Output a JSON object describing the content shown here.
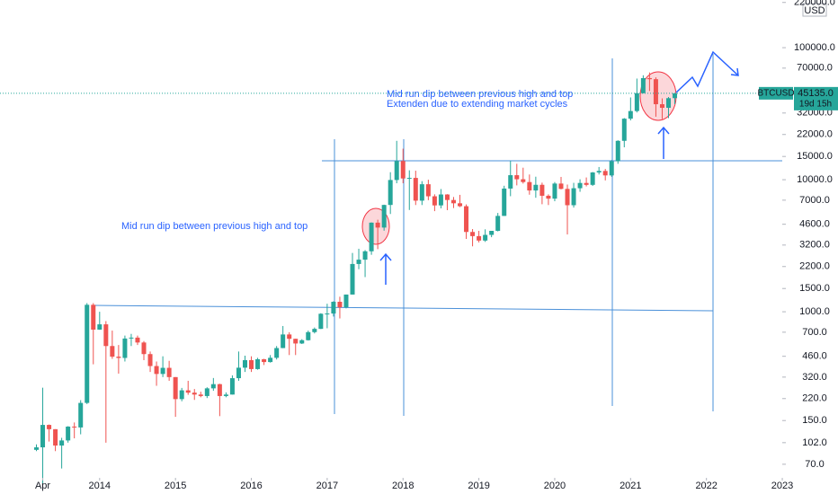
{
  "chart_data": {
    "type": "candlestick",
    "symbol": "BTCUSD",
    "currency": "USD",
    "log_scale": true,
    "up_color": "#26a69a",
    "down_color": "#ef5350",
    "x": [
      "2013-03",
      "2013-04",
      "2013-05",
      "2013-06",
      "2013-07",
      "2013-08",
      "2013-09",
      "2013-10",
      "2013-11",
      "2013-12",
      "2014-01",
      "2014-02",
      "2014-03",
      "2014-04",
      "2014-05",
      "2014-06",
      "2014-07",
      "2014-08",
      "2014-09",
      "2014-10",
      "2014-11",
      "2014-12",
      "2015-01",
      "2015-02",
      "2015-03",
      "2015-04",
      "2015-05",
      "2015-06",
      "2015-07",
      "2015-08",
      "2015-09",
      "2015-10",
      "2015-11",
      "2015-12",
      "2016-01",
      "2016-02",
      "2016-03",
      "2016-04",
      "2016-05",
      "2016-06",
      "2016-07",
      "2016-08",
      "2016-09",
      "2016-10",
      "2016-11",
      "2016-12",
      "2017-01",
      "2017-02",
      "2017-03",
      "2017-04",
      "2017-05",
      "2017-06",
      "2017-07",
      "2017-08",
      "2017-09",
      "2017-10",
      "2017-11",
      "2017-12",
      "2018-01",
      "2018-02",
      "2018-03",
      "2018-04",
      "2018-05",
      "2018-06",
      "2018-07",
      "2018-08",
      "2018-09",
      "2018-10",
      "2018-11",
      "2018-12",
      "2019-01",
      "2019-02",
      "2019-03",
      "2019-04",
      "2019-05",
      "2019-06",
      "2019-07",
      "2019-08",
      "2019-09",
      "2019-10",
      "2019-11",
      "2019-12",
      "2020-01",
      "2020-02",
      "2020-03",
      "2020-04",
      "2020-05",
      "2020-06",
      "2020-07",
      "2020-08",
      "2020-09",
      "2020-10",
      "2020-11",
      "2020-12",
      "2021-01",
      "2021-02",
      "2021-03",
      "2021-04",
      "2021-05",
      "2021-06",
      "2021-07",
      "2021-08"
    ],
    "open": [
      90,
      94,
      139,
      129,
      97,
      106,
      135,
      133,
      204,
      1129,
      732,
      803,
      550,
      457,
      447,
      627,
      637,
      585,
      478,
      388,
      338,
      376,
      320,
      218,
      254,
      244,
      236,
      230,
      263,
      283,
      230,
      236,
      314,
      377,
      430,
      368,
      437,
      416,
      448,
      531,
      673,
      624,
      575,
      609,
      701,
      742,
      966,
      970,
      1190,
      1080,
      1350,
      2300,
      2480,
      2870,
      4730,
      4340,
      6440,
      9950,
      13860,
      10220,
      10320,
      6940,
      9240,
      7490,
      6390,
      7730,
      7020,
      6630,
      6300,
      4020,
      3740,
      3460,
      3820,
      4100,
      5320,
      8570,
      10820,
      10080,
      9600,
      8290,
      9150,
      7560,
      7190,
      9350,
      8520,
      6410,
      8620,
      9450,
      9140,
      11350,
      11650,
      10780,
      13800,
      19700,
      28990,
      33110,
      45240,
      58800,
      57700,
      37300,
      35040,
      41460
    ],
    "high": [
      99,
      266,
      140,
      129,
      111,
      136,
      145,
      214,
      1163,
      1163,
      1000,
      850,
      720,
      560,
      660,
      680,
      660,
      600,
      500,
      420,
      460,
      425,
      320,
      265,
      300,
      260,
      248,
      268,
      315,
      285,
      245,
      330,
      500,
      465,
      460,
      448,
      440,
      470,
      550,
      780,
      700,
      625,
      620,
      720,
      760,
      975,
      1150,
      1200,
      1300,
      1350,
      2790,
      3000,
      2930,
      4750,
      4980,
      6470,
      11400,
      19700,
      17180,
      11780,
      11700,
      9750,
      10000,
      7750,
      8500,
      7770,
      7400,
      7680,
      6500,
      4230,
      4100,
      4210,
      4100,
      5600,
      9000,
      13880,
      13200,
      12330,
      10950,
      10540,
      9500,
      7750,
      9600,
      10500,
      9190,
      9470,
      10070,
      10400,
      11440,
      12480,
      12070,
      14100,
      19900,
      29300,
      41990,
      58350,
      61780,
      64900,
      59600,
      41300,
      42300,
      45300
    ],
    "low": [
      88,
      50,
      104,
      88,
      65,
      102,
      110,
      118,
      200,
      400,
      730,
      102,
      440,
      340,
      420,
      550,
      560,
      430,
      350,
      275,
      320,
      300,
      160,
      210,
      235,
      215,
      225,
      222,
      252,
      162,
      225,
      236,
      300,
      350,
      350,
      364,
      395,
      412,
      435,
      530,
      470,
      470,
      570,
      605,
      685,
      740,
      750,
      920,
      890,
      1060,
      1350,
      2100,
      1830,
      2700,
      2980,
      4110,
      5500,
      9400,
      9400,
      5900,
      6430,
      6430,
      7000,
      5780,
      6070,
      5880,
      6100,
      6200,
      3560,
      3130,
      3350,
      3380,
      3670,
      4060,
      5320,
      7500,
      9060,
      9350,
      7700,
      7300,
      6520,
      6430,
      6870,
      8450,
      3850,
      6150,
      8100,
      8900,
      8970,
      10960,
      9880,
      10520,
      13200,
      17600,
      28130,
      32300,
      45000,
      47000,
      30000,
      28800,
      29300,
      37300
    ],
    "close": [
      94,
      139,
      129,
      97,
      106,
      135,
      133,
      204,
      1129,
      732,
      803,
      550,
      457,
      447,
      627,
      637,
      585,
      478,
      388,
      338,
      376,
      320,
      218,
      254,
      244,
      236,
      230,
      263,
      283,
      230,
      236,
      314,
      377,
      430,
      368,
      437,
      416,
      448,
      531,
      673,
      624,
      575,
      609,
      701,
      742,
      966,
      970,
      1190,
      1080,
      1350,
      2300,
      2480,
      2870,
      4730,
      4340,
      6440,
      9950,
      13860,
      10220,
      10320,
      6940,
      9240,
      7490,
      6390,
      7730,
      7020,
      6630,
      6300,
      4020,
      3740,
      3460,
      3820,
      4100,
      5320,
      8570,
      10820,
      10080,
      9600,
      8290,
      9150,
      7560,
      7190,
      9350,
      8520,
      6410,
      8620,
      9450,
      9140,
      11350,
      11650,
      10780,
      13800,
      19700,
      28990,
      33110,
      45240,
      58800,
      57700,
      37300,
      35040,
      41460,
      45135
    ],
    "last_label": "45135.0",
    "countdown": "19d 15h",
    "ylim": [
      57,
      229600
    ],
    "yticks": [
      {
        "value": 70,
        "label": "70.0"
      },
      {
        "value": 102,
        "label": "102.0"
      },
      {
        "value": 150,
        "label": "150.0"
      },
      {
        "value": 220,
        "label": "220.0"
      },
      {
        "value": 320,
        "label": "320.0"
      },
      {
        "value": 460,
        "label": "460.0"
      },
      {
        "value": 700,
        "label": "700.0"
      },
      {
        "value": 1000,
        "label": "1000.0"
      },
      {
        "value": 1500,
        "label": "1500.0"
      },
      {
        "value": 2200,
        "label": "2200.0"
      },
      {
        "value": 3200,
        "label": "3200.0"
      },
      {
        "value": 4600,
        "label": "4600.0"
      },
      {
        "value": 7000,
        "label": "7000.0"
      },
      {
        "value": 10000,
        "label": "10000.0"
      },
      {
        "value": 15000,
        "label": "15000.0"
      },
      {
        "value": 22000,
        "label": "22000.0"
      },
      {
        "value": 32000,
        "label": "32000.0"
      },
      {
        "value": 70000,
        "label": "70000.0"
      },
      {
        "value": 100000,
        "label": "100000.0"
      },
      {
        "value": 220000,
        "label": "220000.0"
      }
    ],
    "xticks": [
      {
        "value": "2013-04",
        "label": "Apr"
      },
      {
        "value": "2014-01",
        "label": "2014"
      },
      {
        "value": "2015-01",
        "label": "2015"
      },
      {
        "value": "2016-01",
        "label": "2016"
      },
      {
        "value": "2017-01",
        "label": "2017"
      },
      {
        "value": "2018-01",
        "label": "2018"
      },
      {
        "value": "2019-01",
        "label": "2019"
      },
      {
        "value": "2020-01",
        "label": "2020"
      },
      {
        "value": "2021-01",
        "label": "2021"
      },
      {
        "value": "2022-01",
        "label": "2022"
      },
      {
        "value": "2023-01",
        "label": "2023"
      }
    ],
    "annotations": [
      "Mid run dip between previous high and top",
      "Mid run dip between previous high and top",
      "Extenden due to extending market cycles"
    ]
  }
}
